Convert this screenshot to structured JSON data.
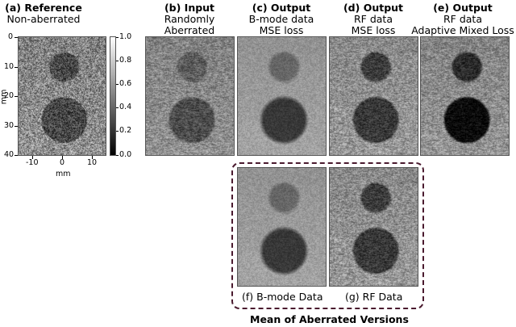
{
  "panels": [
    {
      "id": "a",
      "tag": "(a) Reference",
      "sub": "Non-aberrated",
      "style": "reference"
    },
    {
      "id": "b",
      "tag": "(b) Input",
      "sub": "Randomly",
      "sub2": "Aberrated",
      "style": "input"
    },
    {
      "id": "c",
      "tag": "(c) Output",
      "sub": "B-mode data",
      "sub2": "MSE loss",
      "style": "bmode"
    },
    {
      "id": "d",
      "tag": "(d) Output",
      "sub": "RF data",
      "sub2": "MSE loss",
      "style": "rf"
    },
    {
      "id": "e",
      "tag": "(e) Output",
      "sub": "RF data",
      "sub2": "Adaptive Mixed Loss",
      "style": "adaptive"
    }
  ],
  "mean_panels": [
    {
      "id": "f",
      "caption": "(f) B-mode Data",
      "style": "bmode"
    },
    {
      "id": "g",
      "caption": "(g) RF Data",
      "style": "rf"
    }
  ],
  "mean_label": "Mean of Aberrated Versions",
  "axes": {
    "y_label": "mm",
    "x_label": "mm",
    "y_ticks": [
      "0",
      "10",
      "20",
      "30",
      "40"
    ],
    "x_ticks": [
      "-10",
      "0",
      "10"
    ]
  },
  "colorbar": {
    "ticks": [
      "1.0",
      "0.8",
      "0.6",
      "0.4",
      "0.2",
      "0.0"
    ]
  },
  "colors": {
    "frame": "#4a1a2e"
  }
}
